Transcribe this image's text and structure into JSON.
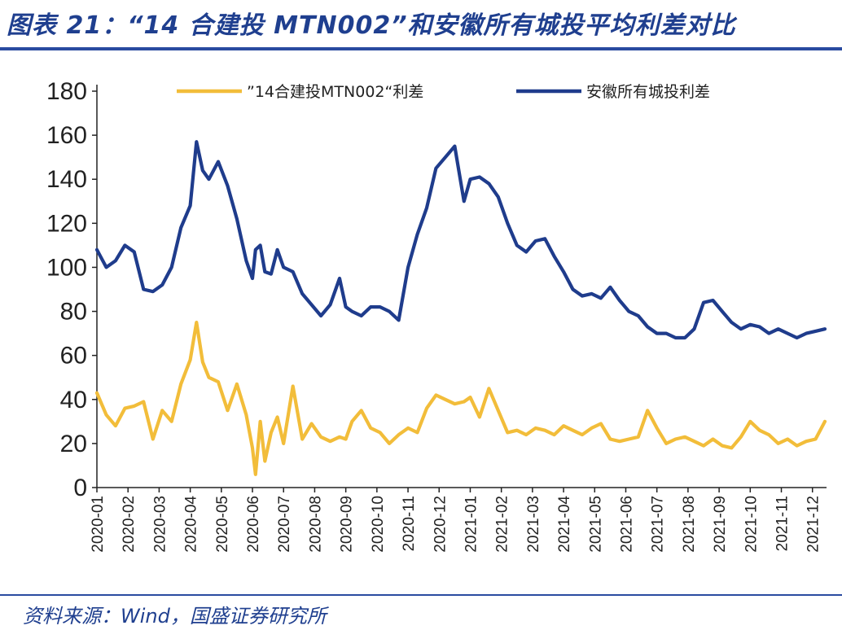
{
  "header": {
    "title": "图表 21：“14 合建投 MTN002”和安徽所有城投平均利差对比"
  },
  "footer": {
    "source": "资料来源：Wind，国盛证券研究所"
  },
  "colors": {
    "title_blue": "#1f3f8f",
    "series_gold": "#f2bd3a",
    "series_navy": "#1f3c8c",
    "axis": "#222222"
  },
  "chart_data": {
    "type": "line",
    "title": "“14 合建投 MTN002”和安徽所有城投平均利差对比",
    "xlabel": "",
    "ylabel": "",
    "ylim": [
      0,
      180
    ],
    "yticks": [
      0,
      20,
      40,
      60,
      80,
      100,
      120,
      140,
      160,
      180
    ],
    "categories": [
      "2020-01",
      "2020-02",
      "2020-03",
      "2020-04",
      "2020-05",
      "2020-06",
      "2020-07",
      "2020-08",
      "2020-09",
      "2020-10",
      "2020-11",
      "2020-12",
      "2021-01",
      "2021-02",
      "2021-03",
      "2021-04",
      "2021-05",
      "2021-06",
      "2021-07",
      "2021-08",
      "2021-09",
      "2021-10",
      "2021-11",
      "2021-12"
    ],
    "grid": false,
    "legend_position": "top",
    "series": [
      {
        "name": "”14合建投MTN002“利差",
        "color": "#f2bd3a",
        "x": [
          0,
          0.3,
          0.6,
          0.9,
          1.2,
          1.5,
          1.8,
          2.1,
          2.4,
          2.7,
          3.0,
          3.2,
          3.4,
          3.6,
          3.9,
          4.2,
          4.5,
          4.8,
          5.0,
          5.1,
          5.25,
          5.4,
          5.6,
          5.8,
          6.0,
          6.3,
          6.6,
          6.9,
          7.2,
          7.5,
          7.8,
          8.0,
          8.2,
          8.5,
          8.8,
          9.1,
          9.4,
          9.7,
          10.0,
          10.3,
          10.6,
          10.9,
          11.2,
          11.5,
          11.8,
          12.0,
          12.3,
          12.6,
          12.9,
          13.2,
          13.5,
          13.8,
          14.1,
          14.4,
          14.7,
          15.0,
          15.3,
          15.6,
          15.9,
          16.2,
          16.5,
          16.8,
          17.1,
          17.4,
          17.7,
          18.0,
          18.3,
          18.6,
          18.9,
          19.2,
          19.5,
          19.8,
          20.1,
          20.4,
          20.7,
          21.0,
          21.3,
          21.6,
          21.9,
          22.2,
          22.5,
          22.8,
          23.1,
          23.4
        ],
        "values": [
          43,
          33,
          28,
          36,
          37,
          39,
          22,
          35,
          30,
          47,
          58,
          75,
          57,
          50,
          48,
          35,
          47,
          33,
          18,
          6,
          30,
          12,
          25,
          32,
          20,
          46,
          22,
          29,
          23,
          21,
          23,
          22,
          30,
          35,
          27,
          25,
          20,
          24,
          27,
          25,
          36,
          42,
          40,
          38,
          39,
          41,
          32,
          45,
          35,
          25,
          26,
          24,
          27,
          26,
          24,
          28,
          26,
          24,
          27,
          29,
          22,
          21,
          22,
          23,
          35,
          27,
          20,
          22,
          23,
          21,
          19,
          22,
          19,
          18,
          23,
          30,
          26,
          24,
          20,
          22,
          19,
          21,
          22,
          30
        ]
      },
      {
        "name": "安徽所有城投利差",
        "color": "#1f3c8c",
        "x": [
          0,
          0.3,
          0.6,
          0.9,
          1.2,
          1.5,
          1.8,
          2.1,
          2.4,
          2.7,
          3.0,
          3.2,
          3.4,
          3.6,
          3.9,
          4.2,
          4.5,
          4.8,
          5.0,
          5.1,
          5.25,
          5.4,
          5.6,
          5.8,
          6.0,
          6.3,
          6.6,
          6.9,
          7.2,
          7.5,
          7.8,
          8.0,
          8.2,
          8.5,
          8.8,
          9.1,
          9.4,
          9.7,
          10.0,
          10.3,
          10.6,
          10.9,
          11.2,
          11.5,
          11.8,
          12.0,
          12.3,
          12.6,
          12.9,
          13.2,
          13.5,
          13.8,
          14.1,
          14.4,
          14.7,
          15.0,
          15.3,
          15.6,
          15.9,
          16.2,
          16.5,
          16.8,
          17.1,
          17.4,
          17.7,
          18.0,
          18.3,
          18.6,
          18.9,
          19.2,
          19.5,
          19.8,
          20.1,
          20.4,
          20.7,
          21.0,
          21.3,
          21.6,
          21.9,
          22.2,
          22.5,
          22.8,
          23.1,
          23.4
        ],
        "values": [
          108,
          100,
          103,
          110,
          107,
          90,
          89,
          92,
          100,
          118,
          128,
          157,
          144,
          140,
          148,
          137,
          122,
          103,
          95,
          108,
          110,
          98,
          97,
          108,
          100,
          98,
          88,
          83,
          78,
          83,
          95,
          82,
          80,
          78,
          82,
          82,
          80,
          76,
          100,
          115,
          127,
          145,
          150,
          155,
          130,
          140,
          141,
          138,
          132,
          120,
          110,
          107,
          112,
          113,
          105,
          98,
          90,
          87,
          88,
          86,
          91,
          85,
          80,
          78,
          73,
          70,
          70,
          68,
          68,
          72,
          84,
          85,
          80,
          75,
          72,
          74,
          73,
          70,
          72,
          70,
          68,
          70,
          71,
          72
        ]
      }
    ]
  }
}
